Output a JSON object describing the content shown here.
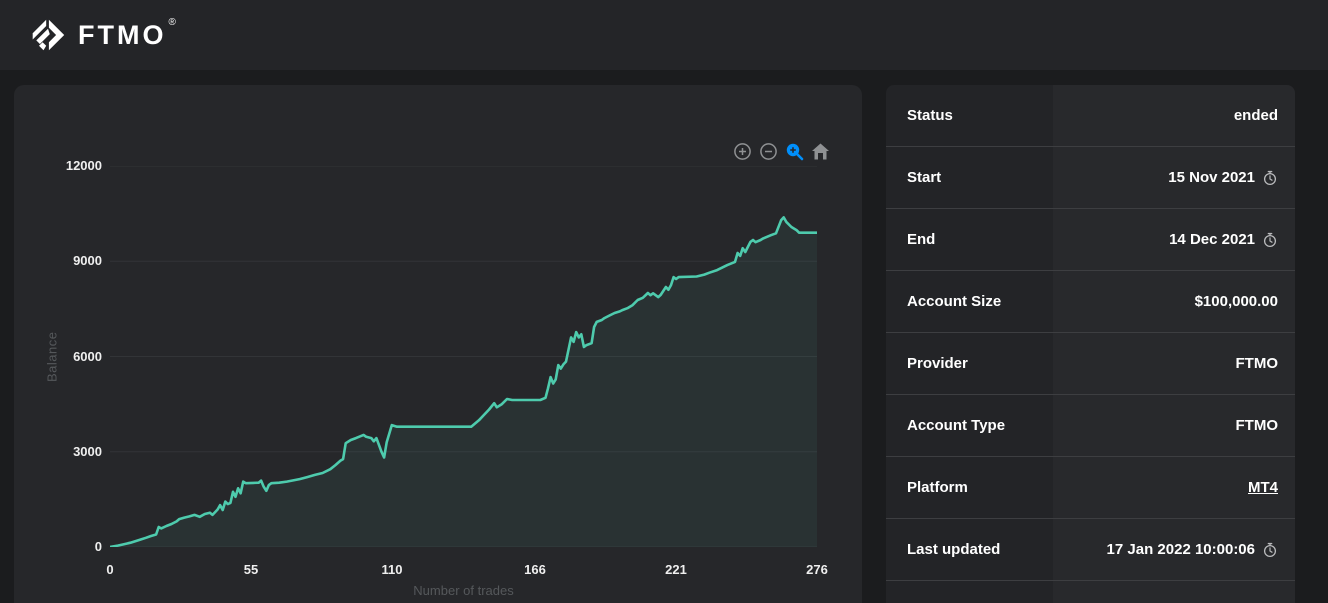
{
  "header": {
    "brand": "FTMO",
    "registered_mark": "®"
  },
  "colors": {
    "accent_line": "#4ecbad",
    "area_fill": "rgba(78,203,173,0.07)",
    "gridline": "#323437",
    "toolbar_icon": "#8f9193",
    "toolbar_active": "#008ffb",
    "header_bg": "#242528",
    "page_bg": "#1b1c1e",
    "card_bg": "#26272a"
  },
  "chart": {
    "y_axis_title": "Balance",
    "x_axis_title": "Number of trades",
    "y_ticks": [
      "12000",
      "9000",
      "6000",
      "3000",
      "0"
    ],
    "x_ticks": [
      "0",
      "55",
      "110",
      "166",
      "221",
      "276"
    ],
    "toolbar_icons": [
      "zoom-in",
      "zoom-out",
      "selection-zoom",
      "home"
    ]
  },
  "chart_data": {
    "type": "area",
    "title": "",
    "xlabel": "Number of trades",
    "ylabel": "Balance",
    "xlim": [
      0,
      276
    ],
    "ylim": [
      0,
      12000
    ],
    "x_tick_values": [
      0,
      55,
      110,
      166,
      221,
      276
    ],
    "y_tick_values": [
      0,
      3000,
      6000,
      9000,
      12000
    ],
    "grid": "horizontal",
    "legend": "none",
    "series": [
      {
        "name": "Balance",
        "points": [
          [
            0,
            0
          ],
          [
            3,
            45
          ],
          [
            5,
            80
          ],
          [
            8,
            135
          ],
          [
            10,
            185
          ],
          [
            12,
            235
          ],
          [
            14,
            290
          ],
          [
            16,
            345
          ],
          [
            18,
            395
          ],
          [
            19,
            630
          ],
          [
            20,
            585
          ],
          [
            22,
            660
          ],
          [
            24,
            725
          ],
          [
            26,
            805
          ],
          [
            27,
            880
          ],
          [
            29,
            925
          ],
          [
            31,
            965
          ],
          [
            33,
            1010
          ],
          [
            35,
            950
          ],
          [
            37,
            1040
          ],
          [
            39,
            1080
          ],
          [
            40,
            1010
          ],
          [
            42,
            1180
          ],
          [
            43,
            1320
          ],
          [
            44,
            1165
          ],
          [
            45,
            1430
          ],
          [
            46,
            1350
          ],
          [
            47,
            1390
          ],
          [
            48,
            1740
          ],
          [
            49,
            1580
          ],
          [
            50,
            1850
          ],
          [
            51,
            1690
          ],
          [
            52,
            2060
          ],
          [
            53,
            2010
          ],
          [
            56,
            2020
          ],
          [
            58,
            2025
          ],
          [
            59,
            2090
          ],
          [
            60,
            1900
          ],
          [
            61,
            1770
          ],
          [
            62,
            1950
          ],
          [
            63,
            2010
          ],
          [
            66,
            2025
          ],
          [
            69,
            2060
          ],
          [
            74,
            2140
          ],
          [
            77,
            2200
          ],
          [
            80,
            2270
          ],
          [
            83,
            2330
          ],
          [
            86,
            2450
          ],
          [
            88,
            2580
          ],
          [
            90,
            2720
          ],
          [
            91,
            2770
          ],
          [
            92,
            3270
          ],
          [
            94,
            3370
          ],
          [
            96,
            3430
          ],
          [
            99,
            3530
          ],
          [
            100,
            3470
          ],
          [
            102,
            3430
          ],
          [
            103,
            3330
          ],
          [
            104,
            3430
          ],
          [
            106,
            3000
          ],
          [
            107,
            2820
          ],
          [
            108,
            3300
          ],
          [
            110,
            3840
          ],
          [
            112,
            3790
          ],
          [
            141,
            3790
          ],
          [
            144,
            3990
          ],
          [
            146,
            4160
          ],
          [
            148,
            4330
          ],
          [
            150,
            4530
          ],
          [
            151,
            4400
          ],
          [
            153,
            4500
          ],
          [
            155,
            4660
          ],
          [
            157,
            4630
          ],
          [
            168,
            4630
          ],
          [
            170,
            4700
          ],
          [
            171,
            5000
          ],
          [
            172,
            5350
          ],
          [
            173,
            5150
          ],
          [
            174,
            5280
          ],
          [
            175,
            5730
          ],
          [
            176,
            5620
          ],
          [
            177,
            5750
          ],
          [
            178,
            5840
          ],
          [
            180,
            6600
          ],
          [
            181,
            6460
          ],
          [
            182,
            6770
          ],
          [
            183,
            6600
          ],
          [
            184,
            6700
          ],
          [
            185,
            6300
          ],
          [
            186,
            6360
          ],
          [
            188,
            6420
          ],
          [
            189,
            6930
          ],
          [
            190,
            7090
          ],
          [
            192,
            7150
          ],
          [
            193,
            7210
          ],
          [
            195,
            7290
          ],
          [
            197,
            7370
          ],
          [
            199,
            7420
          ],
          [
            200,
            7460
          ],
          [
            202,
            7520
          ],
          [
            204,
            7620
          ],
          [
            206,
            7780
          ],
          [
            208,
            7850
          ],
          [
            210,
            8000
          ],
          [
            211,
            7930
          ],
          [
            212,
            7990
          ],
          [
            214,
            7870
          ],
          [
            215,
            7940
          ],
          [
            217,
            8190
          ],
          [
            218,
            8100
          ],
          [
            219,
            8250
          ],
          [
            220,
            8500
          ],
          [
            221,
            8440
          ],
          [
            222,
            8500
          ],
          [
            229,
            8520
          ],
          [
            232,
            8580
          ],
          [
            234,
            8640
          ],
          [
            237,
            8720
          ],
          [
            239,
            8800
          ],
          [
            241,
            8880
          ],
          [
            244,
            8980
          ],
          [
            245,
            9260
          ],
          [
            246,
            9170
          ],
          [
            247,
            9410
          ],
          [
            248,
            9290
          ],
          [
            250,
            9610
          ],
          [
            251,
            9670
          ],
          [
            252,
            9600
          ],
          [
            254,
            9670
          ],
          [
            255,
            9720
          ],
          [
            258,
            9820
          ],
          [
            260,
            9880
          ],
          [
            262,
            10290
          ],
          [
            263,
            10380
          ],
          [
            264,
            10240
          ],
          [
            266,
            10080
          ],
          [
            268,
            9980
          ],
          [
            269,
            9900
          ],
          [
            276,
            9900
          ]
        ]
      }
    ]
  },
  "info_table": {
    "rows": [
      {
        "label": "Status",
        "value": "ended",
        "icon": "",
        "link": false
      },
      {
        "label": "Start",
        "value": "15 Nov 2021",
        "icon": "clock-icon",
        "link": false
      },
      {
        "label": "End",
        "value": "14 Dec 2021",
        "icon": "clock-icon",
        "link": false
      },
      {
        "label": "Account Size",
        "value": "$100,000.00",
        "icon": "",
        "link": false
      },
      {
        "label": "Provider",
        "value": "FTMO",
        "icon": "",
        "link": false
      },
      {
        "label": "Account Type",
        "value": "FTMO",
        "icon": "",
        "link": false
      },
      {
        "label": "Platform",
        "value": "MT4",
        "icon": "",
        "link": true
      },
      {
        "label": "Last updated",
        "value": "17 Jan 2022 10:00:06",
        "icon": "clock-icon",
        "link": false
      }
    ]
  }
}
